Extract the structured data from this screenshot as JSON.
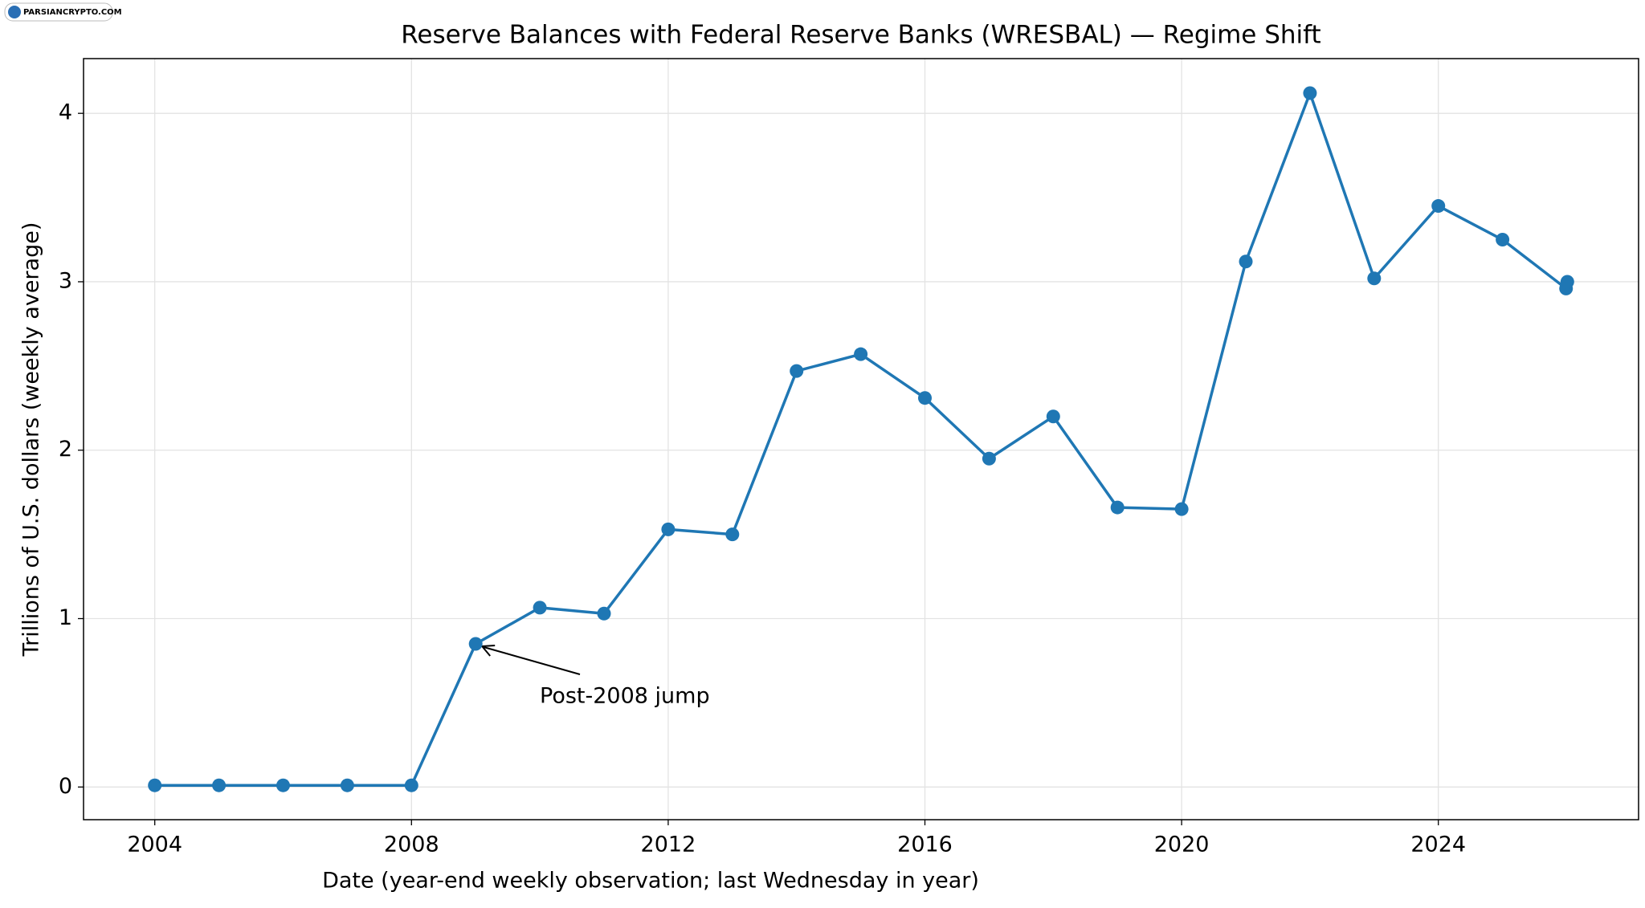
{
  "watermark": "PARSIANCRYPTO.COM",
  "chart_data": {
    "type": "line",
    "title": "Reserve Balances with Federal Reserve Banks (WRESBAL) — Regime Shift",
    "xlabel": "Date (year-end weekly observation; last Wednesday in year)",
    "ylabel": "Trillions of U.S. dollars (weekly average)",
    "annotation": "Post-2008 jump",
    "x": [
      2004,
      2005,
      2006,
      2007,
      2008,
      2009,
      2010,
      2011,
      2012,
      2013,
      2014,
      2015,
      2016,
      2017,
      2018,
      2019,
      2020,
      2021,
      2022,
      2023,
      2024,
      2025,
      2025.99,
      2026.01
    ],
    "series": [
      {
        "name": "WRESBAL",
        "color": "#1f77b4",
        "values": [
          0.01,
          0.01,
          0.01,
          0.01,
          0.01,
          0.85,
          1.065,
          1.03,
          1.53,
          1.5,
          2.47,
          2.57,
          2.31,
          1.95,
          2.2,
          1.66,
          1.65,
          3.12,
          4.12,
          3.02,
          3.45,
          3.25,
          2.96,
          3.0
        ]
      }
    ],
    "xlim": [
      2002.89,
      2027.12
    ],
    "xticks": [
      2004,
      2008,
      2012,
      2016,
      2020,
      2024
    ],
    "ylim": [
      -0.194,
      4.325
    ],
    "yticks": [
      0,
      1,
      2,
      3,
      4
    ],
    "grid": true
  }
}
